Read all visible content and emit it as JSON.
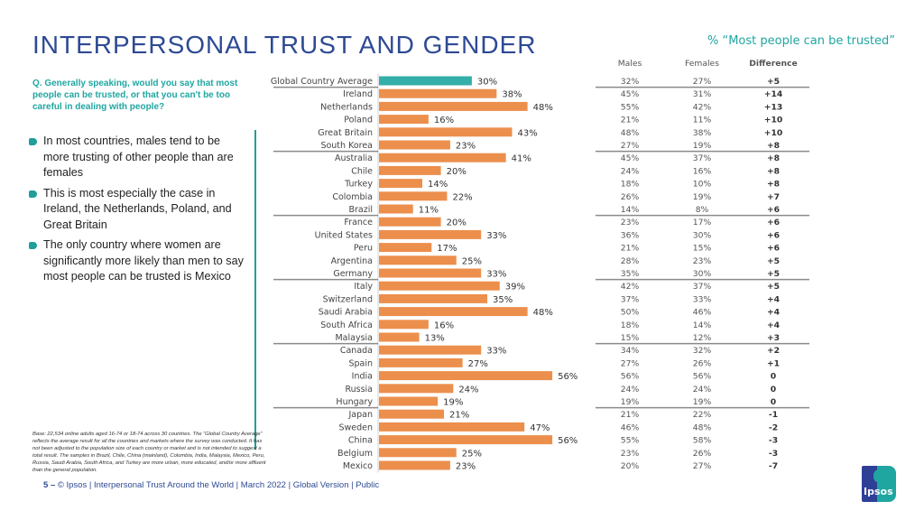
{
  "header": {
    "title": "INTERPERSONAL TRUST AND GENDER",
    "subtitle": "% “Most people can be trusted”"
  },
  "question": "Q. Generally speaking, would you say that most people can be trusted, or that you can't be too careful in dealing with people?",
  "bullets": [
    "In most countries, males tend to be more trusting of other people than are females",
    "This is most especially the case in Ireland, the Netherlands, Poland, and Great Britain",
    "The only country where women are significantly more likely than men to say most people can be trusted is Mexico"
  ],
  "base_note": "Base: 22,534 online adults aged 16-74 or 18-74 across 30 countries. The “Global Country Average” reflects the average result for all the countries and markets where the survey was conducted. It has not been adjusted to the population size of each country or market and is not intended to suggest a total result. The samples in Brazil, Chile, China (mainland), Colombia, India, Malaysia, Mexico, Peru, Russia, Saudi Arabia, South Africa, and Turkey are more urban, more educated, and/or more affluent than the general population.",
  "footer": {
    "page": "5",
    "dash": "–",
    "text": "© Ipsos | Interpersonal Trust Around the World | March 2022 | Global Version | Public"
  },
  "logo": {
    "text": "Ipsos"
  },
  "colors": {
    "title": "#2e4a94",
    "accent": "#1fa6a1",
    "bar": "#ec8f4d",
    "average_bar": "#33aea9"
  },
  "table_headers": [
    "Males",
    "Females",
    "Difference"
  ],
  "chart_data": {
    "type": "bar",
    "orientation": "horizontal",
    "title": "% “Most people can be trusted”",
    "xlabel": "",
    "ylabel": "",
    "xlim": [
      0,
      60
    ],
    "grid": false,
    "categories": [
      "Global Country Average",
      "Ireland",
      "Netherlands",
      "Poland",
      "Great Britain",
      "South Korea",
      "Australia",
      "Chile",
      "Turkey",
      "Colombia",
      "Brazil",
      "France",
      "United States",
      "Peru",
      "Argentina",
      "Germany",
      "Italy",
      "Switzerland",
      "Saudi Arabia",
      "South Africa",
      "Malaysia",
      "Canada",
      "Spain",
      "India",
      "Russia",
      "Hungary",
      "Japan",
      "Sweden",
      "China",
      "Belgium",
      "Mexico"
    ],
    "values": [
      30,
      38,
      48,
      16,
      43,
      23,
      41,
      20,
      14,
      22,
      11,
      20,
      33,
      17,
      25,
      33,
      39,
      35,
      48,
      16,
      13,
      33,
      27,
      56,
      24,
      19,
      21,
      47,
      56,
      25,
      23
    ],
    "value_labels": [
      "30%",
      "38%",
      "48%",
      "16%",
      "43%",
      "23%",
      "41%",
      "20%",
      "14%",
      "22%",
      "11%",
      "20%",
      "33%",
      "17%",
      "25%",
      "33%",
      "39%",
      "35%",
      "48%",
      "16%",
      "13%",
      "33%",
      "27%",
      "56%",
      "24%",
      "19%",
      "21%",
      "47%",
      "56%",
      "25%",
      "23%"
    ],
    "males": [
      "32%",
      "45%",
      "55%",
      "21%",
      "48%",
      "27%",
      "45%",
      "24%",
      "18%",
      "26%",
      "14%",
      "23%",
      "36%",
      "21%",
      "28%",
      "35%",
      "42%",
      "37%",
      "50%",
      "18%",
      "15%",
      "34%",
      "27%",
      "56%",
      "24%",
      "19%",
      "21%",
      "46%",
      "55%",
      "23%",
      "20%"
    ],
    "females": [
      "27%",
      "31%",
      "42%",
      "11%",
      "38%",
      "19%",
      "37%",
      "16%",
      "10%",
      "19%",
      "8%",
      "17%",
      "30%",
      "15%",
      "23%",
      "30%",
      "37%",
      "33%",
      "46%",
      "14%",
      "12%",
      "32%",
      "26%",
      "56%",
      "24%",
      "19%",
      "22%",
      "48%",
      "58%",
      "26%",
      "27%"
    ],
    "difference": [
      "+5",
      "+14",
      "+13",
      "+10",
      "+10",
      "+8",
      "+8",
      "+8",
      "+8",
      "+7",
      "+6",
      "+6",
      "+6",
      "+6",
      "+5",
      "+5",
      "+5",
      "+4",
      "+4",
      "+4",
      "+3",
      "+2",
      "+1",
      "0",
      "0",
      "0",
      "-1",
      "-2",
      "-3",
      "-3",
      "-7"
    ],
    "group_breaks_after": [
      0,
      5,
      10,
      15,
      20,
      25
    ]
  }
}
